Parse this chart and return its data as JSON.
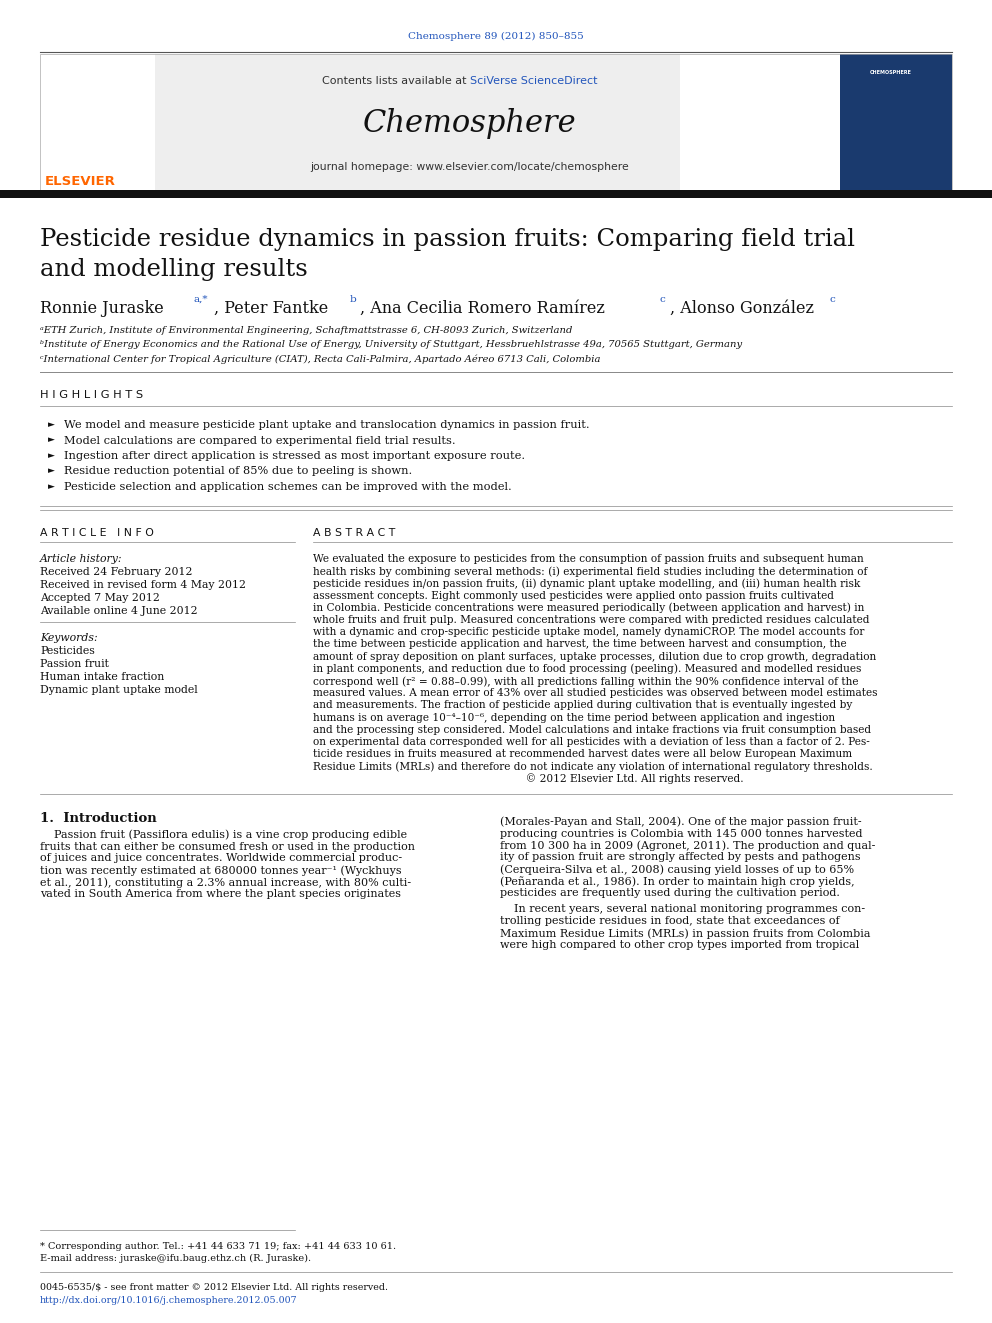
{
  "page_title": "Chemosphere 89 (2012) 850–855",
  "header_text": "Contents lists available at SciVerse ScienceDirect",
  "journal_name": "Chemosphere",
  "journal_url": "journal homepage: www.elsevier.com/locate/chemosphere",
  "article_title_line1": "Pesticide residue dynamics in passion fruits: Comparing field trial",
  "article_title_line2": "and modelling results",
  "author_main": "Ronnie Juraske",
  "author_sup1": "a,*",
  "author2": ", Peter Fantke",
  "author_sup2": "b",
  "author3": ", Ana Cecilia Romero Ramírez",
  "author_sup3": "c",
  "author4": ", Alonso González",
  "author_sup4": "c",
  "affil_a": "ᵃETH Zurich, Institute of Environmental Engineering, Schaftmattstrasse 6, CH-8093 Zurich, Switzerland",
  "affil_b": "ᵇInstitute of Energy Economics and the Rational Use of Energy, University of Stuttgart, Hessbruehlstrasse 49a, 70565 Stuttgart, Germany",
  "affil_c": "ᶜInternational Center for Tropical Agriculture (CIAT), Recta Cali-Palmira, Apartado Aéreo 6713 Cali, Colombia",
  "highlights_title": "H I G H L I G H T S",
  "highlights": [
    "We model and measure pesticide plant uptake and translocation dynamics in passion fruit.",
    "Model calculations are compared to experimental field trial results.",
    "Ingestion after direct application is stressed as most important exposure route.",
    "Residue reduction potential of 85% due to peeling is shown.",
    "Pesticide selection and application schemes can be improved with the model."
  ],
  "article_info_title": "A R T I C L E   I N F O",
  "article_history_label": "Article history:",
  "article_history": [
    "Received 24 February 2012",
    "Received in revised form 4 May 2012",
    "Accepted 7 May 2012",
    "Available online 4 June 2012"
  ],
  "keywords_label": "Keywords:",
  "keywords": [
    "Pesticides",
    "Passion fruit",
    "Human intake fraction",
    "Dynamic plant uptake model"
  ],
  "abstract_title": "A B S T R A C T",
  "abstract_lines": [
    "We evaluated the exposure to pesticides from the consumption of passion fruits and subsequent human",
    "health risks by combining several methods: (i) experimental field studies including the determination of",
    "pesticide residues in/on passion fruits, (ii) dynamic plant uptake modelling, and (iii) human health risk",
    "assessment concepts. Eight commonly used pesticides were applied onto passion fruits cultivated",
    "in Colombia. Pesticide concentrations were measured periodically (between application and harvest) in",
    "whole fruits and fruit pulp. Measured concentrations were compared with predicted residues calculated",
    "with a dynamic and crop-specific pesticide uptake model, namely dynamiCROP. The model accounts for",
    "the time between pesticide application and harvest, the time between harvest and consumption, the",
    "amount of spray deposition on plant surfaces, uptake processes, dilution due to crop growth, degradation",
    "in plant components, and reduction due to food processing (peeling). Measured and modelled residues",
    "correspond well (r² = 0.88–0.99), with all predictions falling within the 90% confidence interval of the",
    "measured values. A mean error of 43% over all studied pesticides was observed between model estimates",
    "and measurements. The fraction of pesticide applied during cultivation that is eventually ingested by",
    "humans is on average 10⁻⁴–10⁻⁶, depending on the time period between application and ingestion",
    "and the processing step considered. Model calculations and intake fractions via fruit consumption based",
    "on experimental data corresponded well for all pesticides with a deviation of less than a factor of 2. Pes-",
    "ticide residues in fruits measured at recommended harvest dates were all below European Maximum",
    "Residue Limits (MRLs) and therefore do not indicate any violation of international regulatory thresholds.",
    "                                                               © 2012 Elsevier Ltd. All rights reserved."
  ],
  "intro_title": "1.  Introduction",
  "intro_left_lines": [
    "    Passion fruit (Passiflora edulis) is a vine crop producing edible",
    "fruits that can either be consumed fresh or used in the production",
    "of juices and juice concentrates. Worldwide commercial produc-",
    "tion was recently estimated at 680000 tonnes year⁻¹ (Wyckhuys",
    "et al., 2011), constituting a 2.3% annual increase, with 80% culti-",
    "vated in South America from where the plant species originates"
  ],
  "intro_right_lines": [
    "(Morales-Payan and Stall, 2004). One of the major passion fruit-",
    "producing countries is Colombia with 145 000 tonnes harvested",
    "from 10 300 ha in 2009 (Agronet, 2011). The production and qual-",
    "ity of passion fruit are strongly affected by pests and pathogens",
    "(Cerqueira-Silva et al., 2008) causing yield losses of up to 65%",
    "(Peñaranda et al., 1986). In order to maintain high crop yields,",
    "pesticides are frequently used during the cultivation period."
  ],
  "intro_right2_lines": [
    "    In recent years, several national monitoring programmes con-",
    "trolling pesticide residues in food, state that exceedances of",
    "Maximum Residue Limits (MRLs) in passion fruits from Colombia",
    "were high compared to other crop types imported from tropical"
  ],
  "footer_note1": "* Corresponding author. Tel.: +41 44 633 71 19; fax: +41 44 633 10 61.",
  "footer_note2": "E-mail address: juraske@ifu.baug.ethz.ch (R. Juraske).",
  "footer_copy": "0045-6535/$ - see front matter © 2012 Elsevier Ltd. All rights reserved.",
  "footer_doi": "http://dx.doi.org/10.1016/j.chemosphere.2012.05.007",
  "bg_color": "#ffffff",
  "header_bg": "#eeeeee",
  "link_color": "#2255bb",
  "text_color": "#111111",
  "thick_bar_color": "#111111"
}
